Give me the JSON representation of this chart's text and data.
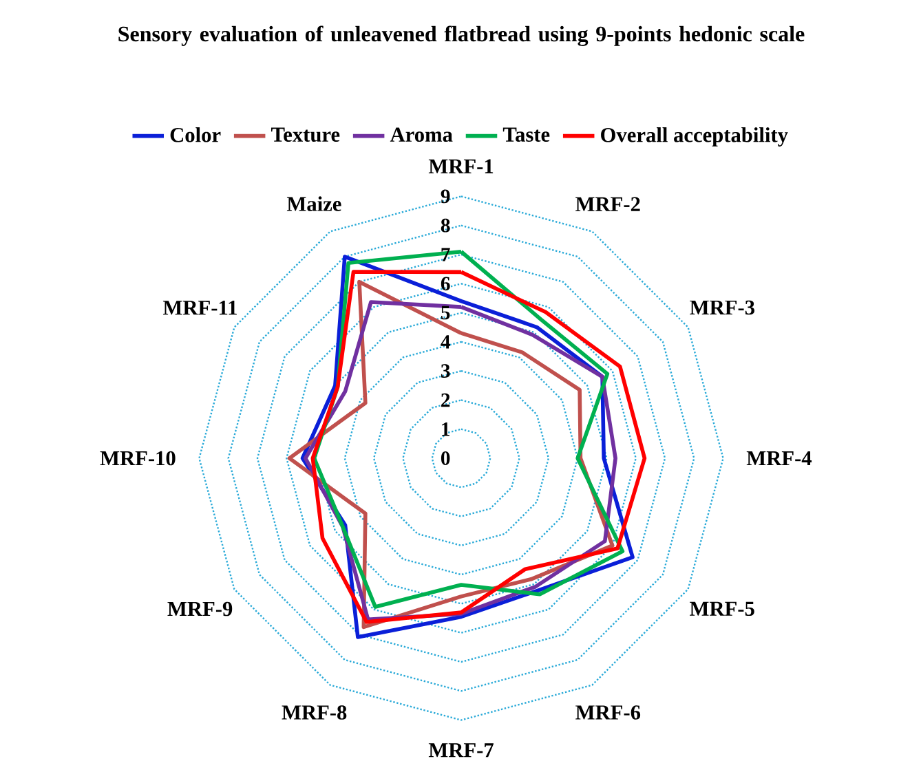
{
  "chart_data": {
    "type": "radar",
    "title": "Sensory evaluation of unleavened flatbread using 9-points hedonic scale",
    "categories": [
      "MRF-1",
      "MRF-2",
      "MRF-3",
      "MRF-4",
      "MRF-5",
      "MRF-6",
      "MRF-7",
      "MRF-8",
      "MRF-9",
      "MRF-10",
      "MRF-11",
      "Maize"
    ],
    "series": [
      {
        "name": "Color",
        "color": "#0a1fd8",
        "values": [
          5.4,
          5.2,
          5.6,
          4.9,
          6.8,
          5.25,
          5.45,
          7.1,
          4.6,
          5.45,
          5.0,
          8.0
        ]
      },
      {
        "name": "Texture",
        "color": "#c0504d",
        "values": [
          4.3,
          4.2,
          4.7,
          4.1,
          6.0,
          4.8,
          4.75,
          6.7,
          3.8,
          5.9,
          3.8,
          7.0
        ]
      },
      {
        "name": "Aroma",
        "color": "#7030a0",
        "values": [
          5.2,
          4.9,
          5.6,
          5.3,
          5.7,
          5.1,
          5.35,
          6.4,
          4.7,
          5.35,
          4.6,
          6.2
        ]
      },
      {
        "name": "Taste",
        "color": "#00b050",
        "values": [
          7.1,
          5.5,
          5.8,
          4.0,
          6.4,
          5.4,
          4.35,
          5.9,
          4.7,
          5.05,
          4.9,
          7.75
        ]
      },
      {
        "name": "Overall acceptability",
        "color": "#ff0000",
        "values": [
          6.4,
          5.8,
          6.3,
          6.3,
          6.2,
          4.4,
          5.3,
          6.5,
          5.5,
          5.1,
          4.9,
          7.4
        ]
      }
    ],
    "ylim": [
      0,
      9
    ],
    "yticks": [
      0,
      1,
      2,
      3,
      4,
      5,
      6,
      7,
      8,
      9
    ],
    "grid": true,
    "legend": "top",
    "line_style": "solid"
  }
}
